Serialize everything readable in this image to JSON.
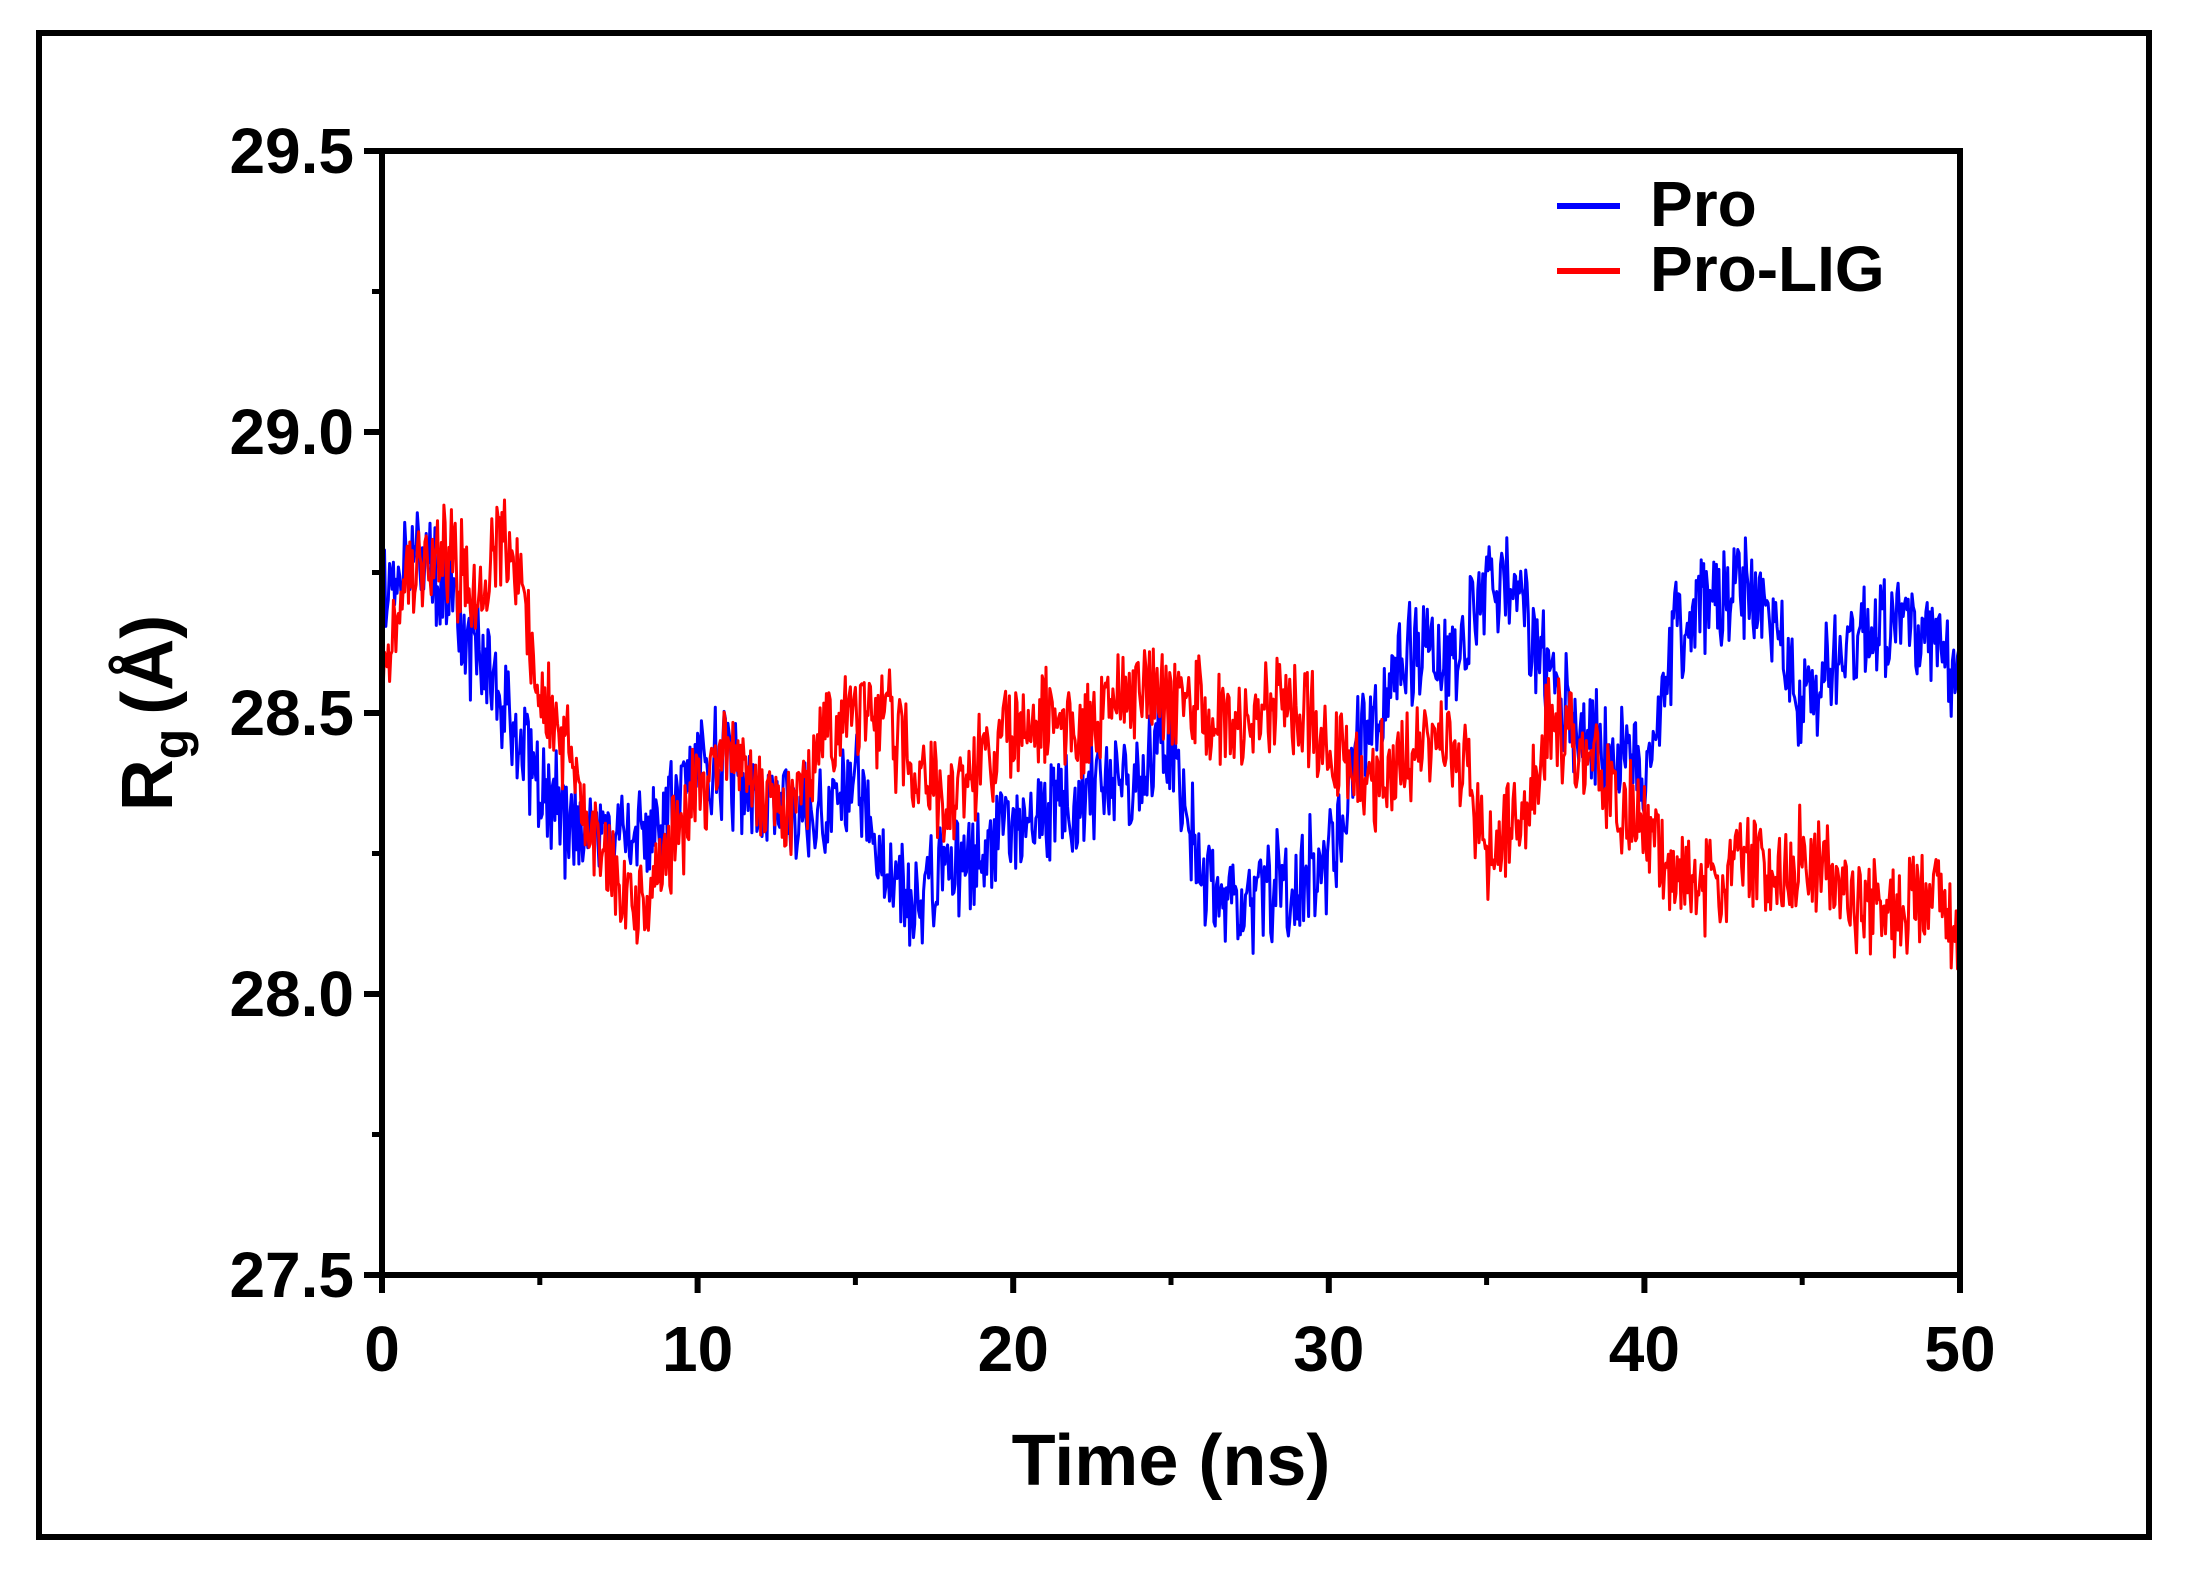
{
  "chart_data": {
    "type": "line",
    "title": "",
    "xlabel": "Time (ns)",
    "ylabel_main": "R",
    "ylabel_sub": "g",
    "ylabel_unit": "(Å)",
    "xlim": [
      0,
      50
    ],
    "ylim": [
      27.5,
      29.5
    ],
    "xticks": [
      0,
      10,
      20,
      30,
      40,
      50
    ],
    "xtick_labels": [
      "0",
      "10",
      "20",
      "30",
      "40",
      "50"
    ],
    "yticks": [
      27.5,
      28.0,
      28.5,
      29.0,
      29.5
    ],
    "ytick_labels": [
      "27.5",
      "28.0",
      "28.5",
      "29.0",
      "29.5"
    ],
    "x_minor_step": 5,
    "y_minor_step": 0.25,
    "grid": false,
    "legend_position": "top-right",
    "series": [
      {
        "name": "Pro",
        "color": "#0000ff",
        "x": [
          0,
          1,
          2,
          3,
          4,
          5,
          6,
          7,
          8,
          9,
          10,
          11,
          12,
          13,
          14,
          15,
          16,
          17,
          18,
          19,
          20,
          21,
          22,
          23,
          24,
          25,
          26,
          27,
          28,
          29,
          30,
          31,
          32,
          33,
          34,
          35,
          36,
          37,
          38,
          39,
          40,
          41,
          42,
          43,
          44,
          45,
          46,
          47,
          48,
          49,
          50
        ],
        "values": [
          28.68,
          28.78,
          28.72,
          28.6,
          28.5,
          28.38,
          28.3,
          28.28,
          28.25,
          28.3,
          28.42,
          28.4,
          28.35,
          28.3,
          28.32,
          28.4,
          28.2,
          28.15,
          28.22,
          28.25,
          28.3,
          28.32,
          28.35,
          28.38,
          28.4,
          28.45,
          28.2,
          28.15,
          28.18,
          28.2,
          28.25,
          28.45,
          28.55,
          28.65,
          28.6,
          28.72,
          28.7,
          28.55,
          28.48,
          28.42,
          28.4,
          28.65,
          28.7,
          28.72,
          28.68,
          28.5,
          28.6,
          28.65,
          28.68,
          28.62,
          28.55
        ],
        "noise": 0.08
      },
      {
        "name": "Pro-LIG",
        "color": "#ff0000",
        "x": [
          0,
          1,
          2,
          3,
          4,
          5,
          6,
          7,
          8,
          9,
          10,
          11,
          12,
          13,
          14,
          15,
          16,
          17,
          18,
          19,
          20,
          21,
          22,
          23,
          24,
          25,
          26,
          27,
          28,
          29,
          30,
          31,
          32,
          33,
          34,
          35,
          36,
          37,
          38,
          39,
          40,
          41,
          42,
          43,
          44,
          45,
          46,
          47,
          48,
          49,
          50
        ],
        "values": [
          28.6,
          28.75,
          28.8,
          28.7,
          28.82,
          28.55,
          28.4,
          28.25,
          28.15,
          28.25,
          28.35,
          28.45,
          28.35,
          28.3,
          28.45,
          28.5,
          28.48,
          28.4,
          28.35,
          28.42,
          28.48,
          28.5,
          28.45,
          28.5,
          28.55,
          28.52,
          28.5,
          28.48,
          28.5,
          28.52,
          28.45,
          28.38,
          28.4,
          28.45,
          28.45,
          28.25,
          28.3,
          28.48,
          28.45,
          28.35,
          28.3,
          28.2,
          28.18,
          28.25,
          28.2,
          28.25,
          28.2,
          28.15,
          28.15,
          28.2,
          28.1
        ],
        "noise": 0.075
      }
    ]
  }
}
